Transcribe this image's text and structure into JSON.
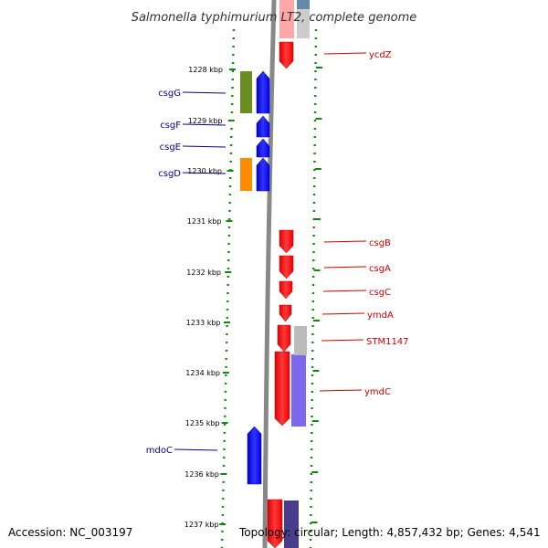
{
  "title": "Salmonella typhimurium LT2, complete genome",
  "footer": {
    "accession": "Accession: NC_003197",
    "topology": "Topology: circular; Length: 4,857,432 bp; Genes: 4,541"
  },
  "colors": {
    "background": "#ffffff",
    "backbone": "#888888",
    "tick": "#118811",
    "forward_label": "#000099",
    "reverse_label": "#cc0000",
    "forward_gene": "#0000ff",
    "reverse_gene": "#ff0000"
  },
  "kbp_labels": [
    "1228 kbp",
    "1229 kbp",
    "1230 kbp",
    "1231 kbp",
    "1232 kbp",
    "1233 kbp",
    "1234 kbp",
    "1235 kbp",
    "1236 kbp",
    "1237 kbp"
  ],
  "forward_genes": [
    "csgG",
    "csgF",
    "csgE",
    "csgD",
    "mdoC"
  ],
  "reverse_genes": [
    "ycdZ",
    "csgB",
    "csgA",
    "csgC",
    "ymdA",
    "STM1147",
    "ymdC"
  ],
  "cog_blocks": [
    {
      "color": "#6b8e23"
    },
    {
      "color": "#ff8c00"
    },
    {
      "color": "#7b68ee"
    },
    {
      "color": "#483d8b"
    }
  ]
}
